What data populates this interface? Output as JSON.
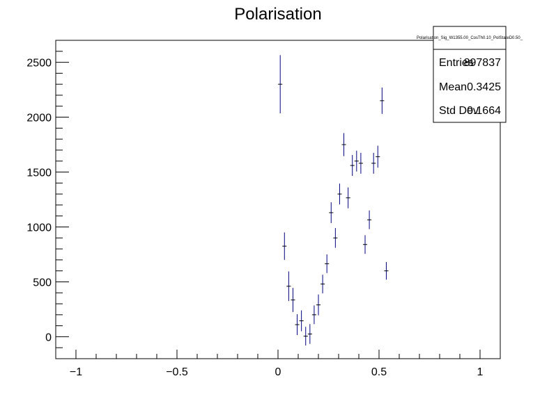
{
  "chart_data": {
    "type": "scatter",
    "title": "Polarisation",
    "xlabel": "",
    "ylabel": "",
    "xlim": [
      -1.1,
      1.1
    ],
    "ylim": [
      -200,
      2700
    ],
    "x_ticks": [
      -1,
      -0.5,
      0,
      0.5,
      1
    ],
    "x_tick_labels": [
      "−1",
      "−0.5",
      "0",
      "0.5",
      "1"
    ],
    "y_ticks": [
      0,
      500,
      1000,
      1500,
      2000,
      2500
    ],
    "y_tick_labels": [
      "0",
      "500",
      "1000",
      "1500",
      "2000",
      "2500"
    ],
    "grid": false,
    "marker_color": "#000080",
    "points": [
      {
        "x": 0.011,
        "y": 2300,
        "err": 265
      },
      {
        "x": 0.032,
        "y": 825,
        "err": 125
      },
      {
        "x": 0.053,
        "y": 460,
        "err": 135
      },
      {
        "x": 0.074,
        "y": 335,
        "err": 110
      },
      {
        "x": 0.095,
        "y": 110,
        "err": 95
      },
      {
        "x": 0.116,
        "y": 145,
        "err": 95
      },
      {
        "x": 0.137,
        "y": 5,
        "err": 85
      },
      {
        "x": 0.158,
        "y": 25,
        "err": 90
      },
      {
        "x": 0.179,
        "y": 200,
        "err": 85
      },
      {
        "x": 0.2,
        "y": 290,
        "err": 95
      },
      {
        "x": 0.221,
        "y": 480,
        "err": 85
      },
      {
        "x": 0.242,
        "y": 665,
        "err": 85
      },
      {
        "x": 0.263,
        "y": 1130,
        "err": 95
      },
      {
        "x": 0.284,
        "y": 900,
        "err": 90
      },
      {
        "x": 0.305,
        "y": 1300,
        "err": 95
      },
      {
        "x": 0.326,
        "y": 1750,
        "err": 105
      },
      {
        "x": 0.347,
        "y": 1265,
        "err": 95
      },
      {
        "x": 0.368,
        "y": 1560,
        "err": 95
      },
      {
        "x": 0.389,
        "y": 1600,
        "err": 95
      },
      {
        "x": 0.41,
        "y": 1580,
        "err": 95
      },
      {
        "x": 0.431,
        "y": 840,
        "err": 85
      },
      {
        "x": 0.452,
        "y": 1065,
        "err": 85
      },
      {
        "x": 0.473,
        "y": 1580,
        "err": 95
      },
      {
        "x": 0.494,
        "y": 1640,
        "err": 100
      },
      {
        "x": 0.515,
        "y": 2150,
        "err": 120
      },
      {
        "x": 0.536,
        "y": 600,
        "err": 80
      }
    ],
    "stats_box": {
      "name": "Polarisation_Sig_W1355.00_CosTh0.10_PolStateD0.50_",
      "rows": [
        {
          "label": "Entries",
          "value": "897837"
        },
        {
          "label": "Mean",
          "value": "0.3425"
        },
        {
          "label": "Std Dev",
          "value": "0.1664"
        }
      ]
    }
  }
}
